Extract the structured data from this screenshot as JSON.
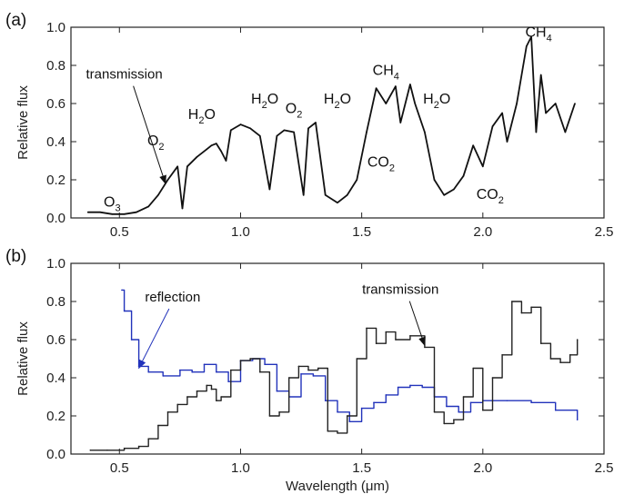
{
  "chart_data": [
    {
      "panel": "(a)",
      "type": "line",
      "xlabel": "",
      "ylabel": "Relative flux",
      "xlim": [
        0.3,
        2.5
      ],
      "ylim": [
        0.0,
        1.0
      ],
      "xticks": [
        "0.5",
        "1.0",
        "1.5",
        "2.0",
        "2.5"
      ],
      "yticks": [
        "0.0",
        "0.2",
        "0.4",
        "0.6",
        "0.8",
        "1.0"
      ],
      "annotations": [
        {
          "text": "transmission",
          "x": 0.52,
          "y": 0.73,
          "arrow_to": [
            0.69,
            0.18
          ]
        },
        {
          "molecule": "O",
          "sub": "3",
          "x": 0.47,
          "y": 0.06
        },
        {
          "molecule": "O",
          "sub": "2",
          "x": 0.65,
          "y": 0.38
        },
        {
          "molecule": "H",
          "sub": "2",
          "tail": "O",
          "x": 0.84,
          "y": 0.52
        },
        {
          "molecule": "H",
          "sub": "2",
          "tail": "O",
          "x": 1.1,
          "y": 0.6
        },
        {
          "molecule": "O",
          "sub": "2",
          "x": 1.22,
          "y": 0.55
        },
        {
          "molecule": "H",
          "sub": "2",
          "tail": "O",
          "x": 1.4,
          "y": 0.6
        },
        {
          "molecule": "CH",
          "sub": "4",
          "x": 1.6,
          "y": 0.75
        },
        {
          "molecule": "CO",
          "sub": "2",
          "x": 1.58,
          "y": 0.27
        },
        {
          "molecule": "H",
          "sub": "2",
          "tail": "O",
          "x": 1.81,
          "y": 0.6
        },
        {
          "molecule": "CO",
          "sub": "2",
          "x": 2.03,
          "y": 0.1
        },
        {
          "molecule": "CH",
          "sub": "4",
          "x": 2.23,
          "y": 0.95
        }
      ],
      "series": [
        {
          "values": [
            [
              0.37,
              0.03
            ],
            [
              0.42,
              0.03
            ],
            [
              0.47,
              0.02
            ],
            [
              0.52,
              0.02
            ],
            [
              0.57,
              0.03
            ],
            [
              0.62,
              0.06
            ],
            [
              0.66,
              0.12
            ],
            [
              0.7,
              0.2
            ],
            [
              0.74,
              0.27
            ],
            [
              0.76,
              0.05
            ],
            [
              0.78,
              0.27
            ],
            [
              0.82,
              0.32
            ],
            [
              0.86,
              0.36
            ],
            [
              0.88,
              0.38
            ],
            [
              0.9,
              0.39
            ],
            [
              0.92,
              0.35
            ],
            [
              0.94,
              0.3
            ],
            [
              0.96,
              0.46
            ],
            [
              1.0,
              0.49
            ],
            [
              1.04,
              0.47
            ],
            [
              1.08,
              0.43
            ],
            [
              1.12,
              0.15
            ],
            [
              1.15,
              0.43
            ],
            [
              1.18,
              0.46
            ],
            [
              1.22,
              0.45
            ],
            [
              1.26,
              0.12
            ],
            [
              1.28,
              0.47
            ],
            [
              1.31,
              0.5
            ],
            [
              1.35,
              0.12
            ],
            [
              1.4,
              0.08
            ],
            [
              1.44,
              0.12
            ],
            [
              1.48,
              0.2
            ],
            [
              1.52,
              0.45
            ],
            [
              1.56,
              0.68
            ],
            [
              1.6,
              0.6
            ],
            [
              1.64,
              0.69
            ],
            [
              1.66,
              0.5
            ],
            [
              1.7,
              0.7
            ],
            [
              1.72,
              0.6
            ],
            [
              1.76,
              0.45
            ],
            [
              1.8,
              0.2
            ],
            [
              1.84,
              0.12
            ],
            [
              1.88,
              0.15
            ],
            [
              1.92,
              0.22
            ],
            [
              1.96,
              0.38
            ],
            [
              2.0,
              0.27
            ],
            [
              2.04,
              0.48
            ],
            [
              2.08,
              0.55
            ],
            [
              2.1,
              0.4
            ],
            [
              2.14,
              0.6
            ],
            [
              2.18,
              0.9
            ],
            [
              2.2,
              0.95
            ],
            [
              2.22,
              0.45
            ],
            [
              2.24,
              0.75
            ],
            [
              2.26,
              0.55
            ],
            [
              2.3,
              0.6
            ],
            [
              2.34,
              0.45
            ],
            [
              2.38,
              0.6
            ]
          ]
        }
      ]
    },
    {
      "panel": "(b)",
      "type": "line",
      "xlabel": "Wavelength (μm)",
      "ylabel": "Relative flux",
      "xlim": [
        0.3,
        2.5
      ],
      "ylim": [
        0.0,
        1.0
      ],
      "xticks": [
        "0.5",
        "1.0",
        "1.5",
        "2.0",
        "2.5"
      ],
      "yticks": [
        "0.0",
        "0.2",
        "0.4",
        "0.6",
        "0.8",
        "1.0"
      ],
      "annotations": [
        {
          "text": "reflection",
          "x": 0.72,
          "y": 0.8,
          "color": "#2233bb",
          "arrow_to": [
            0.58,
            0.45
          ]
        },
        {
          "text": "transmission",
          "x": 1.66,
          "y": 0.84,
          "arrow_to": [
            1.76,
            0.57
          ]
        }
      ],
      "series": [
        {
          "color": "#2233bb",
          "values": [
            [
              0.51,
              0.86
            ],
            [
              0.52,
              0.75
            ],
            [
              0.55,
              0.6
            ],
            [
              0.58,
              0.46
            ],
            [
              0.62,
              0.43
            ],
            [
              0.68,
              0.41
            ],
            [
              0.75,
              0.44
            ],
            [
              0.8,
              0.43
            ],
            [
              0.85,
              0.47
            ],
            [
              0.9,
              0.43
            ],
            [
              0.95,
              0.38
            ],
            [
              1.0,
              0.49
            ],
            [
              1.05,
              0.5
            ],
            [
              1.1,
              0.47
            ],
            [
              1.15,
              0.33
            ],
            [
              1.2,
              0.3
            ],
            [
              1.25,
              0.42
            ],
            [
              1.3,
              0.41
            ],
            [
              1.35,
              0.28
            ],
            [
              1.4,
              0.22
            ],
            [
              1.45,
              0.17
            ],
            [
              1.5,
              0.24
            ],
            [
              1.55,
              0.27
            ],
            [
              1.6,
              0.31
            ],
            [
              1.65,
              0.35
            ],
            [
              1.7,
              0.36
            ],
            [
              1.75,
              0.35
            ],
            [
              1.8,
              0.3
            ],
            [
              1.85,
              0.25
            ],
            [
              1.9,
              0.22
            ],
            [
              1.95,
              0.27
            ],
            [
              2.0,
              0.28
            ],
            [
              2.1,
              0.28
            ],
            [
              2.2,
              0.27
            ],
            [
              2.3,
              0.23
            ],
            [
              2.39,
              0.18
            ]
          ]
        },
        {
          "color": "#222222",
          "values": [
            [
              0.38,
              0.02
            ],
            [
              0.45,
              0.02
            ],
            [
              0.52,
              0.03
            ],
            [
              0.58,
              0.04
            ],
            [
              0.62,
              0.08
            ],
            [
              0.66,
              0.15
            ],
            [
              0.7,
              0.22
            ],
            [
              0.74,
              0.26
            ],
            [
              0.78,
              0.3
            ],
            [
              0.82,
              0.33
            ],
            [
              0.86,
              0.36
            ],
            [
              0.88,
              0.34
            ],
            [
              0.9,
              0.28
            ],
            [
              0.92,
              0.3
            ],
            [
              0.96,
              0.44
            ],
            [
              1.0,
              0.49
            ],
            [
              1.04,
              0.5
            ],
            [
              1.08,
              0.43
            ],
            [
              1.12,
              0.2
            ],
            [
              1.16,
              0.22
            ],
            [
              1.2,
              0.4
            ],
            [
              1.24,
              0.46
            ],
            [
              1.28,
              0.44
            ],
            [
              1.32,
              0.45
            ],
            [
              1.36,
              0.12
            ],
            [
              1.4,
              0.11
            ],
            [
              1.44,
              0.2
            ],
            [
              1.48,
              0.5
            ],
            [
              1.52,
              0.66
            ],
            [
              1.56,
              0.58
            ],
            [
              1.6,
              0.64
            ],
            [
              1.64,
              0.6
            ],
            [
              1.7,
              0.62
            ],
            [
              1.76,
              0.56
            ],
            [
              1.8,
              0.22
            ],
            [
              1.84,
              0.16
            ],
            [
              1.88,
              0.18
            ],
            [
              1.92,
              0.3
            ],
            [
              1.96,
              0.45
            ],
            [
              2.0,
              0.23
            ],
            [
              2.04,
              0.4
            ],
            [
              2.08,
              0.52
            ],
            [
              2.12,
              0.8
            ],
            [
              2.16,
              0.74
            ],
            [
              2.2,
              0.77
            ],
            [
              2.24,
              0.58
            ],
            [
              2.28,
              0.5
            ],
            [
              2.32,
              0.48
            ],
            [
              2.36,
              0.52
            ],
            [
              2.39,
              0.6
            ]
          ]
        }
      ]
    }
  ]
}
